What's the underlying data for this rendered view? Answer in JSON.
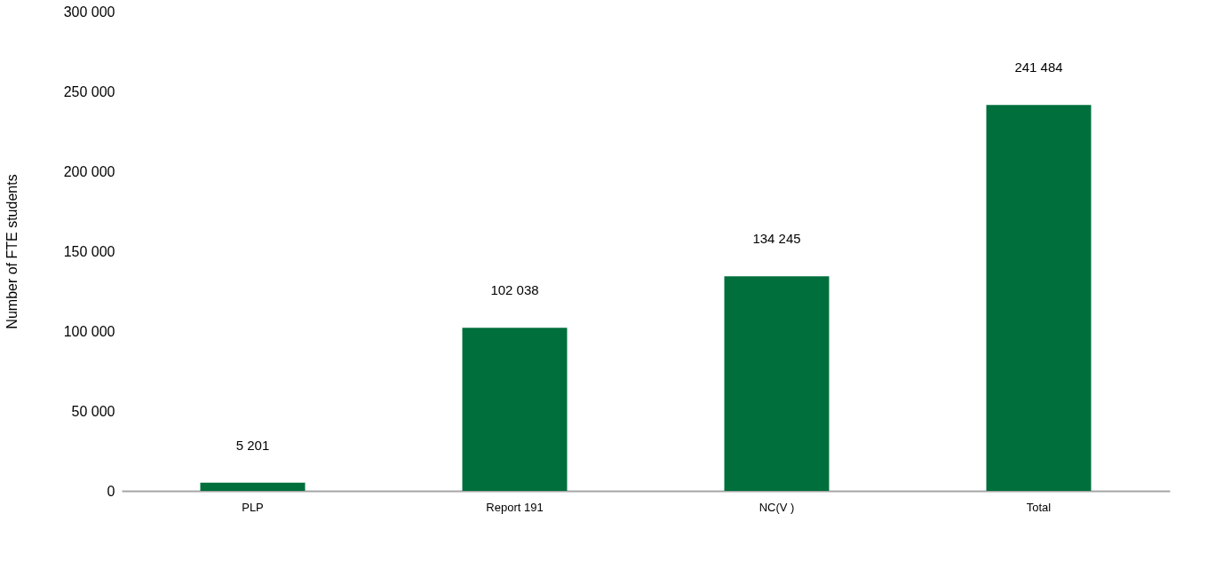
{
  "chart_data": {
    "type": "bar",
    "ylabel": "Number of FTE students",
    "categories": [
      "PLP",
      "Report 191",
      "NC(V )",
      "Total"
    ],
    "values": [
      5201,
      102038,
      134245,
      241484
    ],
    "value_labels": [
      "5 201",
      "102 038",
      "134 245",
      "241 484"
    ],
    "color": "#006f3c",
    "ylim": [
      0,
      300000
    ],
    "yticks": [
      {
        "value": 0,
        "label": "0"
      },
      {
        "value": 50000,
        "label": "50 000"
      },
      {
        "value": 100000,
        "label": "100 000"
      },
      {
        "value": 150000,
        "label": "150 000"
      },
      {
        "value": 200000,
        "label": "200 000"
      },
      {
        "value": 250000,
        "label": "250 000"
      },
      {
        "value": 300000,
        "label": "300 000"
      }
    ],
    "grid": false
  }
}
